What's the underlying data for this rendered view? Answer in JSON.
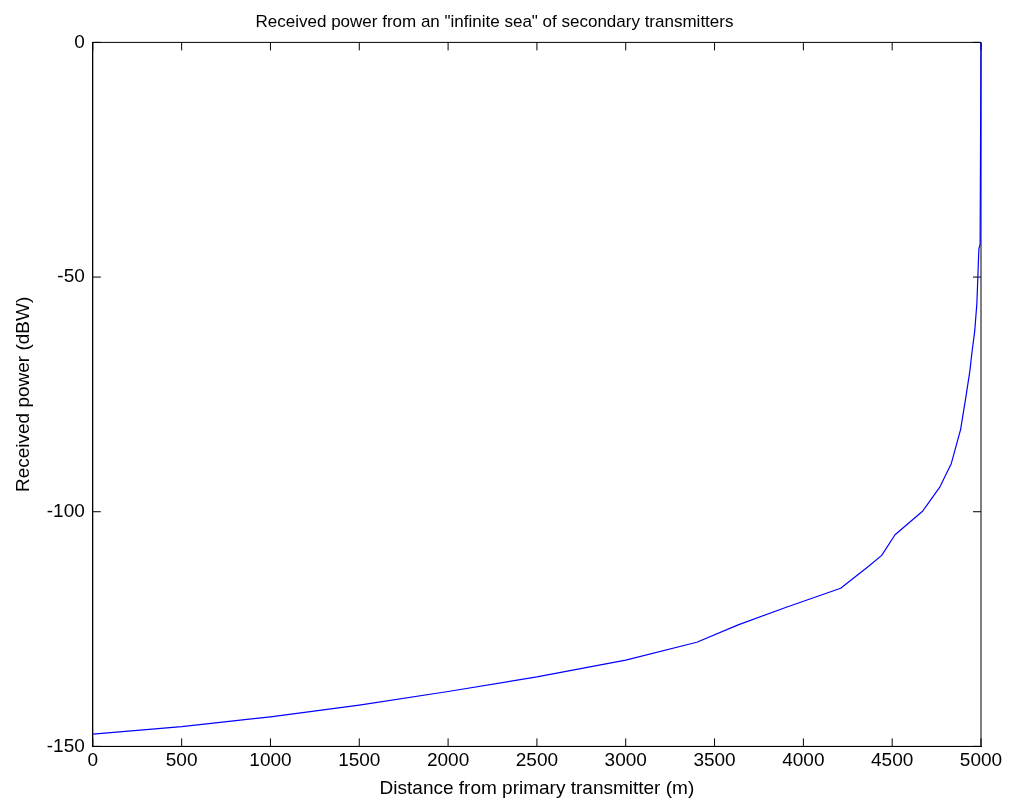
{
  "chart_data": {
    "type": "line",
    "title": "Received power from an \"infinite sea\" of secondary transmitters",
    "xlabel": "Distance from primary transmitter (m)",
    "ylabel": "Received power (dBW)",
    "xlim": [
      0,
      5000
    ],
    "xticks": [
      0,
      500,
      1000,
      1500,
      2000,
      2500,
      3000,
      3500,
      4000,
      4500,
      5000
    ],
    "ylim": [
      -150,
      0
    ],
    "yticks": [
      -150,
      -100,
      -50,
      0
    ],
    "grid": false,
    "legend": false,
    "marker": "none",
    "line_style": "solid",
    "series": [
      {
        "color": "#0000ff",
        "x": [
          0,
          500,
          1000,
          1500,
          2000,
          2500,
          3000,
          3400,
          3633,
          3900,
          4210,
          4371,
          4441,
          4516,
          4671,
          4769,
          4833,
          4885,
          4913,
          4937,
          4948,
          4965,
          4977,
          4988,
          4995,
          5000
        ],
        "values": [
          -147.4,
          -145.8,
          -143.7,
          -141.2,
          -138.3,
          -135.2,
          -131.6,
          -127.8,
          -124.1,
          -120.4,
          -116.3,
          -111.5,
          -109.3,
          -104.9,
          -99.9,
          -94.7,
          -89.7,
          -82.5,
          -76.0,
          -70.1,
          -66.4,
          -61.4,
          -55.5,
          -44,
          -43,
          0
        ]
      }
    ]
  }
}
